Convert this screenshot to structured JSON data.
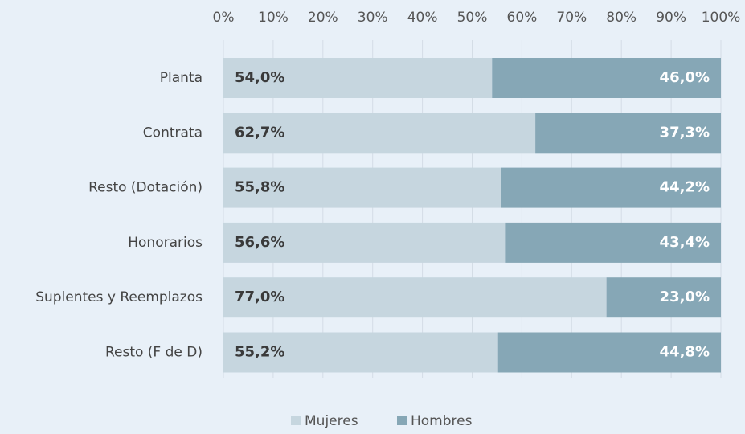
{
  "chart_data": {
    "type": "bar",
    "orientation": "horizontal",
    "stacked": true,
    "categories": [
      "Planta",
      "Contrata",
      "Resto (Dotación)",
      "Honorarios",
      "Suplentes y Reemplazos",
      "Resto (F de D)"
    ],
    "series": [
      {
        "name": "Mujeres",
        "color": "#c6d6df",
        "values": [
          54.0,
          62.7,
          55.8,
          56.6,
          77.0,
          55.2
        ],
        "value_labels": [
          "54,0%",
          "62,7%",
          "55,8%",
          "56,6%",
          "77,0%",
          "55,2%"
        ]
      },
      {
        "name": "Hombres",
        "color": "#86a7b6",
        "values": [
          46.0,
          37.3,
          44.2,
          43.4,
          23.0,
          44.8
        ],
        "value_labels": [
          "46,0%",
          "37,3%",
          "44,2%",
          "43,4%",
          "23,0%",
          "44,8%"
        ]
      }
    ],
    "xlim": [
      0,
      100
    ],
    "xticks": [
      {
        "value": 0,
        "label": "0%"
      },
      {
        "value": 10,
        "label": "10%"
      },
      {
        "value": 20,
        "label": "20%"
      },
      {
        "value": 30,
        "label": "30%"
      },
      {
        "value": 40,
        "label": "40%"
      },
      {
        "value": 50,
        "label": "50%"
      },
      {
        "value": 60,
        "label": "60%"
      },
      {
        "value": 70,
        "label": "70%"
      },
      {
        "value": 80,
        "label": "80%"
      },
      {
        "value": 90,
        "label": "90%"
      },
      {
        "value": 100,
        "label": "100%"
      }
    ],
    "grid": true,
    "legend": "bottom"
  }
}
